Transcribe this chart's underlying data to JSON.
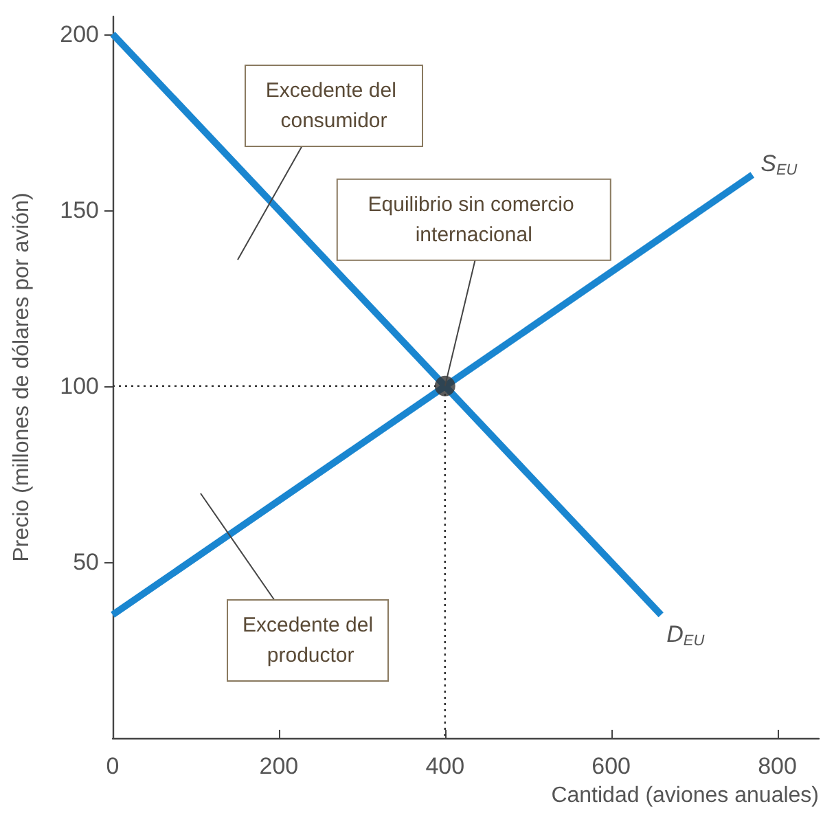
{
  "chart_data": {
    "type": "line",
    "xlabel": "Cantidad (aviones anuales)",
    "ylabel": "Precio (millones de dólares por avión)",
    "xlim": [
      0,
      850
    ],
    "ylim": [
      0,
      205
    ],
    "xticks": [
      0,
      200,
      400,
      600,
      800
    ],
    "yticks": [
      50,
      100,
      150,
      200
    ],
    "marker": "none",
    "annotations": [
      "Excedente del consumidor",
      {
        "text": "Equilibrio sin comercio internacional",
        "x": 400,
        "y": 100
      },
      "Excedente del productor"
    ],
    "series": [
      {
        "name": "S$_{EU}$",
        "color": "#1a86d0",
        "x": [
          0,
          770
        ],
        "values": [
          35,
          160
        ]
      },
      {
        "name": "D$_{EU}$",
        "color": "#1a86d0",
        "x": [
          0,
          660
        ],
        "values": [
          200,
          35
        ]
      },
      {
        "type": "line",
        "color": "#333333",
        "line_style": "dotted",
        "x": [
          0,
          400,
          400
        ],
        "values": [
          100,
          100,
          0
        ]
      },
      {
        "type": "scatter",
        "color": "#333333",
        "marker": "circle",
        "x": [
          400
        ],
        "values": [
          100
        ]
      }
    ]
  }
}
